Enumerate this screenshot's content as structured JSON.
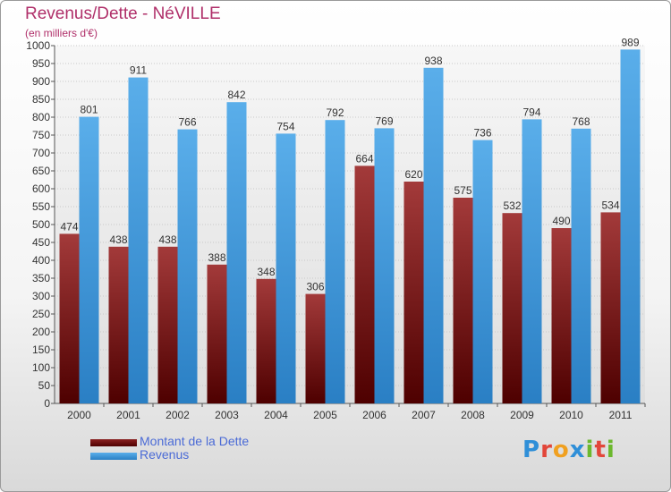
{
  "header": {
    "title": "Revenus/Dette - NéVILLE",
    "subtitle": "(en milliers d'€)"
  },
  "legend": [
    {
      "label": "Montant de la Dette",
      "color": "#7a1010"
    },
    {
      "label": "Revenus",
      "color": "#3f9ae2"
    }
  ],
  "logo": {
    "text": "Proxiti",
    "letters": [
      {
        "ch": "P",
        "color": "#2f8fd8"
      },
      {
        "ch": "r",
        "color": "#e2463a"
      },
      {
        "ch": "o",
        "color": "#f0a020"
      },
      {
        "ch": "x",
        "color": "#2f8fd8"
      },
      {
        "ch": "i",
        "color": "#6cb82e"
      },
      {
        "ch": "t",
        "color": "#e2463a"
      },
      {
        "ch": "i",
        "color": "#6cb82e"
      }
    ]
  },
  "chart_data": {
    "type": "bar",
    "title": "Revenus/Dette - NéVILLE",
    "subtitle": "(en milliers d'€)",
    "categories": [
      "2000",
      "2001",
      "2002",
      "2003",
      "2004",
      "2005",
      "2006",
      "2007",
      "2008",
      "2009",
      "2010",
      "2011"
    ],
    "series": [
      {
        "name": "Montant de la Dette",
        "color": "#7a1010",
        "values": [
          474,
          438,
          438,
          388,
          348,
          306,
          664,
          620,
          575,
          532,
          490,
          534
        ]
      },
      {
        "name": "Revenus",
        "color": "#3f9ae2",
        "values": [
          801,
          911,
          766,
          842,
          754,
          792,
          769,
          938,
          736,
          794,
          768,
          989
        ]
      }
    ],
    "ylim": [
      0,
      1000
    ],
    "ytick_step": 50,
    "grid": true,
    "legend_position": "bottom-left"
  }
}
